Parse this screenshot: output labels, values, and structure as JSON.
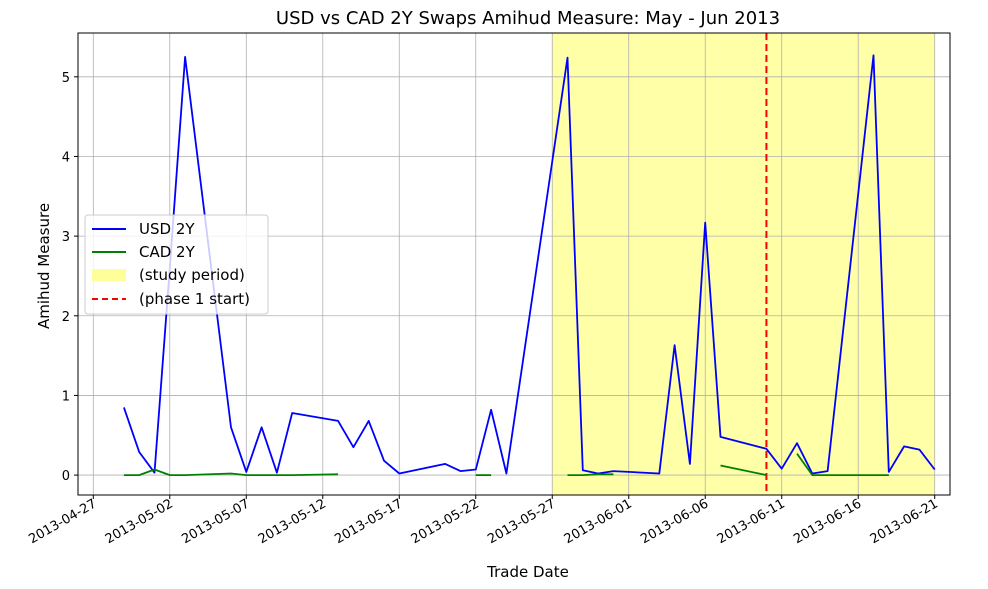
{
  "chart_data": {
    "type": "line",
    "title": "USD vs CAD 2Y Swaps Amihud Measure: May - Jun 2013",
    "xlabel": "Trade Date",
    "ylabel": "Amihud Measure",
    "xlim": [
      "2013-04-26",
      "2013-06-22"
    ],
    "ylim": [
      -0.25,
      5.55
    ],
    "x_ticks": [
      "2013-04-27",
      "2013-05-02",
      "2013-05-07",
      "2013-05-12",
      "2013-05-17",
      "2013-05-22",
      "2013-05-27",
      "2013-06-01",
      "2013-06-06",
      "2013-06-11",
      "2013-06-16",
      "2013-06-21"
    ],
    "y_ticks": [
      0,
      1,
      2,
      3,
      4,
      5
    ],
    "grid": true,
    "legend_position": "center-left",
    "series": [
      {
        "name": "USD 2Y",
        "color": "#0000ff",
        "points": [
          [
            "2013-04-29",
            0.85
          ],
          [
            "2013-04-30",
            0.29
          ],
          [
            "2013-05-01",
            0.03
          ],
          [
            "2013-05-02",
            2.6
          ],
          [
            "2013-05-03",
            5.25
          ],
          [
            "2013-05-06",
            0.6
          ],
          [
            "2013-05-07",
            0.04
          ],
          [
            "2013-05-08",
            0.6
          ],
          [
            "2013-05-09",
            0.03
          ],
          [
            "2013-05-10",
            0.78
          ],
          [
            "2013-05-13",
            0.68
          ],
          [
            "2013-05-14",
            0.35
          ],
          [
            "2013-05-15",
            0.68
          ],
          [
            "2013-05-16",
            0.18
          ],
          [
            "2013-05-17",
            0.02
          ],
          [
            "2013-05-20",
            0.14
          ],
          [
            "2013-05-21",
            0.05
          ],
          [
            "2013-05-22",
            0.07
          ],
          [
            "2013-05-23",
            0.82
          ],
          [
            "2013-05-24",
            0.02
          ],
          [
            "2013-05-28",
            5.24
          ],
          [
            "2013-05-29",
            0.06
          ],
          [
            "2013-05-30",
            0.02
          ],
          [
            "2013-05-31",
            0.05
          ],
          [
            "2013-06-03",
            0.02
          ],
          [
            "2013-06-04",
            1.63
          ],
          [
            "2013-06-05",
            0.14
          ],
          [
            "2013-06-06",
            3.17
          ],
          [
            "2013-06-07",
            0.48
          ],
          [
            "2013-06-10",
            0.33
          ],
          [
            "2013-06-11",
            0.08
          ],
          [
            "2013-06-12",
            0.4
          ],
          [
            "2013-06-13",
            0.02
          ],
          [
            "2013-06-14",
            0.05
          ],
          [
            "2013-06-17",
            5.27
          ],
          [
            "2013-06-18",
            0.04
          ],
          [
            "2013-06-19",
            0.36
          ],
          [
            "2013-06-20",
            0.32
          ],
          [
            "2013-06-21",
            0.07
          ]
        ]
      },
      {
        "name": "CAD 2Y",
        "color": "#008000",
        "segments": [
          [
            [
              "2013-04-29",
              0.0
            ],
            [
              "2013-04-30",
              0.0
            ],
            [
              "2013-05-01",
              0.07
            ],
            [
              "2013-05-02",
              0.0
            ],
            [
              "2013-05-03",
              0.0
            ],
            [
              "2013-05-06",
              0.02
            ],
            [
              "2013-05-07",
              0.0
            ],
            [
              "2013-05-08",
              0.0
            ],
            [
              "2013-05-09",
              0.0
            ],
            [
              "2013-05-10",
              0.0
            ],
            [
              "2013-05-13",
              0.01
            ]
          ],
          [
            [
              "2013-05-22",
              0.0
            ],
            [
              "2013-05-23",
              0.0
            ]
          ],
          [
            [
              "2013-05-28",
              0.0
            ],
            [
              "2013-05-29",
              0.0
            ],
            [
              "2013-05-30",
              0.01
            ],
            [
              "2013-05-31",
              0.01
            ]
          ],
          [
            [
              "2013-06-07",
              0.12
            ],
            [
              "2013-06-10",
              0.0
            ]
          ],
          [
            [
              "2013-06-12",
              0.27
            ],
            [
              "2013-06-13",
              0.0
            ],
            [
              "2013-06-14",
              0.0
            ],
            [
              "2013-06-17",
              0.0
            ],
            [
              "2013-06-18",
              0.0
            ]
          ]
        ]
      }
    ],
    "shaded_region": {
      "label": "(study period)",
      "start": "2013-05-27",
      "end": "2013-06-21",
      "color": "#ffff99"
    },
    "vline": {
      "label": "(phase 1 start)",
      "date": "2013-06-10",
      "color": "#ff0000"
    }
  }
}
